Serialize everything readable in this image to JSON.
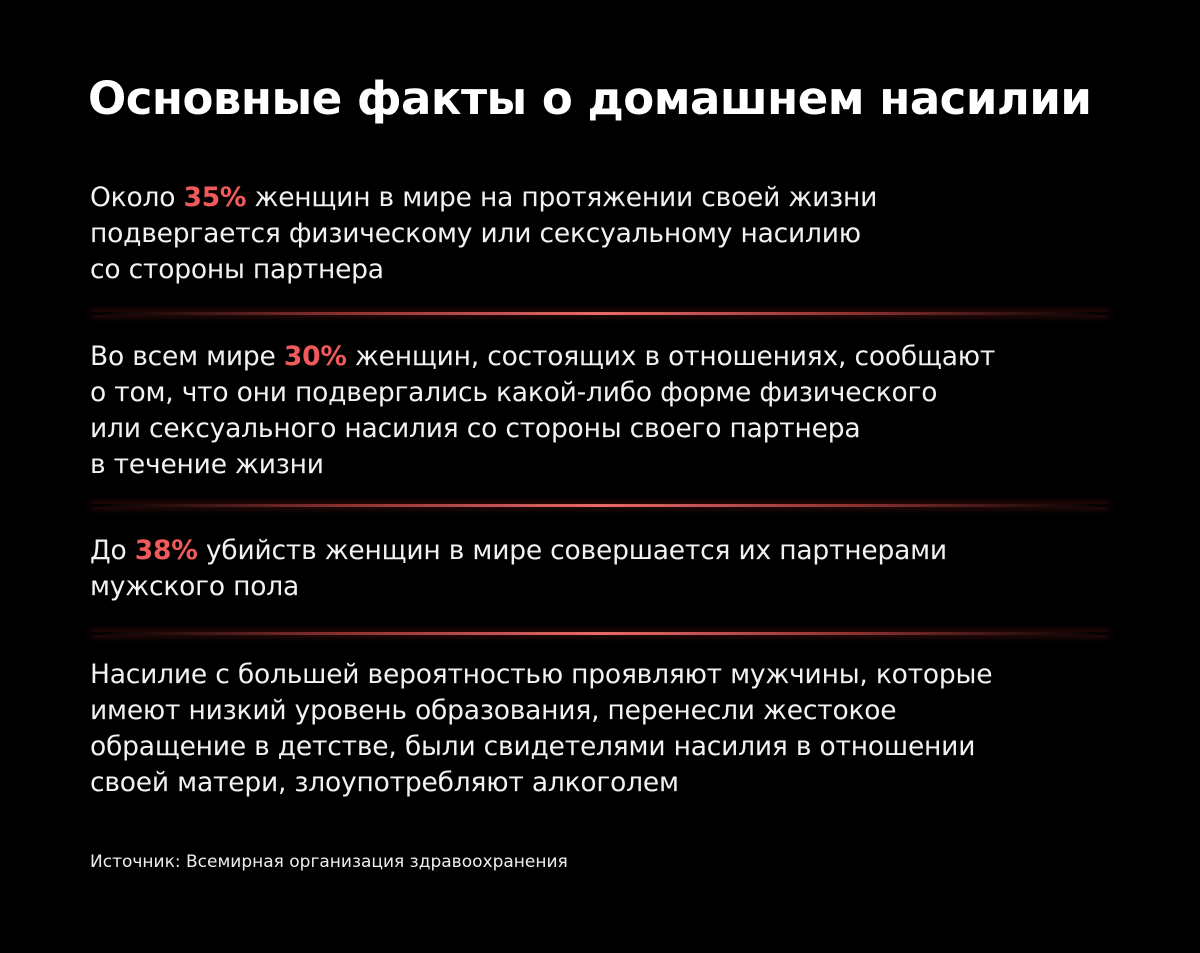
{
  "title": "Основные факты о домашнем насилии",
  "accent_color": "#f05a5a",
  "facts": [
    {
      "lines": [
        {
          "pre": "Около ",
          "hl": "35%",
          "post": " женщин в мире на протяжении своей жизни"
        },
        {
          "pre": "подвергается физическому или сексуальному насилию"
        },
        {
          "pre": "со стороны партнера"
        }
      ]
    },
    {
      "lines": [
        {
          "pre": "Во всем мире ",
          "hl": "30%",
          "post": " женщин, состоящих в отношениях, сообщают"
        },
        {
          "pre": "о том, что они подвергались какой-либо форме физического"
        },
        {
          "pre": "или сексуального насилия со стороны своего партнера"
        },
        {
          "pre": "в течение жизни"
        }
      ]
    },
    {
      "lines": [
        {
          "pre": "До ",
          "hl": "38%",
          "post": " убийств женщин в мире совершается их партнерами"
        },
        {
          "pre": "мужского пола"
        }
      ]
    },
    {
      "lines": [
        {
          "pre": "Насилие с большей вероятностью проявляют мужчины, которые"
        },
        {
          "pre": "имеют низкий уровень образования, перенесли жестокое"
        },
        {
          "pre": "обращение в детстве, были свидетелями насилия в отношении"
        },
        {
          "pre": "своей матери, злоупотребляют алкоголем"
        }
      ]
    }
  ],
  "source": "Источник: Всемирная организация здравоохранения"
}
